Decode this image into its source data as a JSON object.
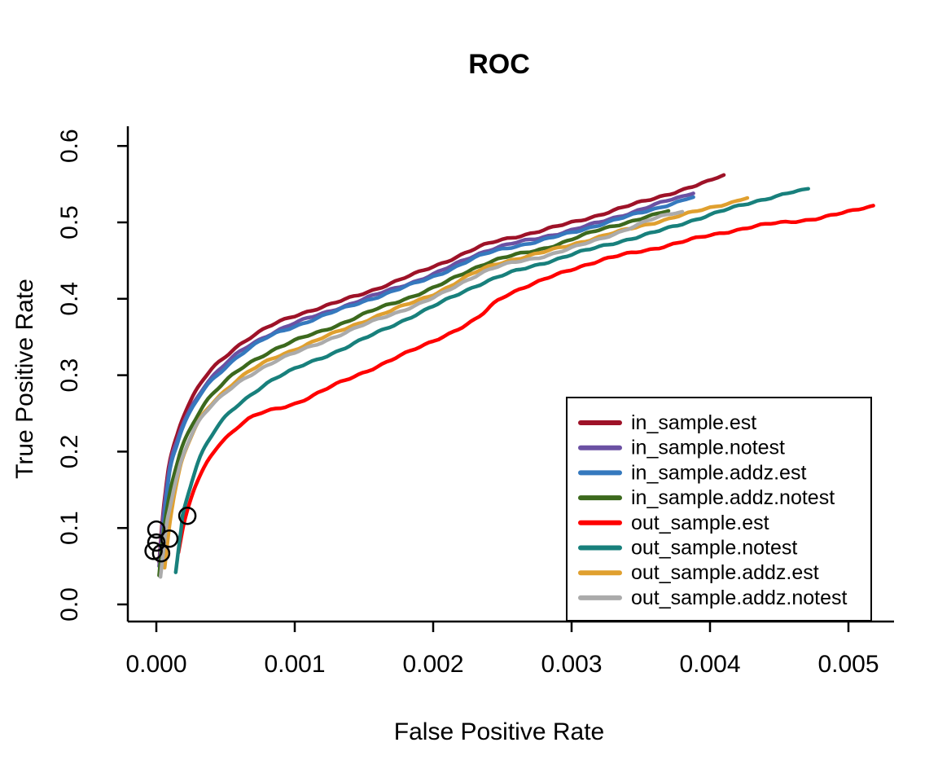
{
  "chart_data": {
    "type": "line",
    "title": "ROC",
    "xlabel": "False Positive Rate",
    "ylabel": "True Positive Rate",
    "xlim": [
      0,
      0.0052
    ],
    "ylim": [
      0,
      0.62
    ],
    "grid": false,
    "legend_position": "right-center",
    "x_ticks": {
      "values": [
        0.0,
        0.001,
        0.002,
        0.003,
        0.004,
        0.005
      ],
      "labels": [
        "0.000",
        "0.001",
        "0.002",
        "0.003",
        "0.004",
        "0.005"
      ]
    },
    "y_ticks": {
      "values": [
        0.0,
        0.1,
        0.2,
        0.3,
        0.4,
        0.5,
        0.6
      ],
      "labels": [
        "0.0",
        "0.1",
        "0.2",
        "0.3",
        "0.4",
        "0.5",
        "0.6"
      ]
    },
    "series": [
      {
        "name": "in_sample.est",
        "color": "#9E1228",
        "points": [
          [
            2e-05,
            0.055
          ],
          [
            4e-05,
            0.105
          ],
          [
            7e-05,
            0.155
          ],
          [
            0.0001,
            0.19
          ],
          [
            0.00015,
            0.222
          ],
          [
            0.0002,
            0.248
          ],
          [
            0.0003,
            0.283
          ],
          [
            0.0004,
            0.308
          ],
          [
            0.0005,
            0.325
          ],
          [
            0.0006,
            0.34
          ],
          [
            0.0008,
            0.362
          ],
          [
            0.001,
            0.378
          ],
          [
            0.0013,
            0.395
          ],
          [
            0.0016,
            0.414
          ],
          [
            0.002,
            0.442
          ],
          [
            0.0024,
            0.472
          ],
          [
            0.0028,
            0.49
          ],
          [
            0.0032,
            0.51
          ],
          [
            0.0036,
            0.532
          ],
          [
            0.0039,
            0.548
          ],
          [
            0.0041,
            0.562
          ]
        ]
      },
      {
        "name": "in_sample.notest",
        "color": "#6B51A3",
        "points": [
          [
            2e-05,
            0.05
          ],
          [
            5e-05,
            0.115
          ],
          [
            0.0001,
            0.183
          ],
          [
            0.00015,
            0.215
          ],
          [
            0.0002,
            0.24
          ],
          [
            0.0003,
            0.273
          ],
          [
            0.0004,
            0.297
          ],
          [
            0.0006,
            0.33
          ],
          [
            0.0008,
            0.352
          ],
          [
            0.001,
            0.368
          ],
          [
            0.0013,
            0.387
          ],
          [
            0.0016,
            0.406
          ],
          [
            0.002,
            0.432
          ],
          [
            0.0024,
            0.464
          ],
          [
            0.0028,
            0.481
          ],
          [
            0.0032,
            0.5
          ],
          [
            0.0036,
            0.523
          ],
          [
            0.00388,
            0.538
          ]
        ]
      },
      {
        "name": "in_sample.addz.est",
        "color": "#3579BE",
        "points": [
          [
            3e-05,
            0.05
          ],
          [
            6e-05,
            0.115
          ],
          [
            0.0001,
            0.178
          ],
          [
            0.00015,
            0.21
          ],
          [
            0.0002,
            0.235
          ],
          [
            0.0003,
            0.269
          ],
          [
            0.0004,
            0.293
          ],
          [
            0.0006,
            0.326
          ],
          [
            0.0008,
            0.349
          ],
          [
            0.001,
            0.364
          ],
          [
            0.0013,
            0.384
          ],
          [
            0.0016,
            0.403
          ],
          [
            0.002,
            0.429
          ],
          [
            0.0024,
            0.46
          ],
          [
            0.0028,
            0.477
          ],
          [
            0.0032,
            0.497
          ],
          [
            0.0036,
            0.518
          ],
          [
            0.00388,
            0.533
          ]
        ]
      },
      {
        "name": "in_sample.addz.notest",
        "color": "#3C691D",
        "points": [
          [
            2e-05,
            0.038
          ],
          [
            5e-05,
            0.09
          ],
          [
            0.0001,
            0.148
          ],
          [
            0.00015,
            0.185
          ],
          [
            0.0002,
            0.213
          ],
          [
            0.0003,
            0.249
          ],
          [
            0.0004,
            0.274
          ],
          [
            0.0006,
            0.307
          ],
          [
            0.0008,
            0.329
          ],
          [
            0.001,
            0.345
          ],
          [
            0.0013,
            0.365
          ],
          [
            0.0016,
            0.387
          ],
          [
            0.002,
            0.414
          ],
          [
            0.0024,
            0.448
          ],
          [
            0.0028,
            0.466
          ],
          [
            0.0032,
            0.49
          ],
          [
            0.0035,
            0.505
          ],
          [
            0.0037,
            0.515
          ]
        ]
      },
      {
        "name": "out_sample.est",
        "color": "#FF0000",
        "points": [
          [
            0.00016,
            0.068
          ],
          [
            0.0002,
            0.105
          ],
          [
            0.00025,
            0.138
          ],
          [
            0.0003,
            0.162
          ],
          [
            0.0004,
            0.196
          ],
          [
            0.0005,
            0.218
          ],
          [
            0.0007,
            0.246
          ],
          [
            0.001,
            0.263
          ],
          [
            0.0013,
            0.288
          ],
          [
            0.0016,
            0.312
          ],
          [
            0.002,
            0.345
          ],
          [
            0.0023,
            0.372
          ],
          [
            0.0025,
            0.402
          ],
          [
            0.0028,
            0.425
          ],
          [
            0.0032,
            0.45
          ],
          [
            0.0036,
            0.466
          ],
          [
            0.004,
            0.483
          ],
          [
            0.0044,
            0.497
          ],
          [
            0.0048,
            0.506
          ],
          [
            0.00518,
            0.522
          ]
        ]
      },
      {
        "name": "out_sample.notest",
        "color": "#18807C",
        "points": [
          [
            0.00014,
            0.042
          ],
          [
            0.00018,
            0.1
          ],
          [
            0.0002,
            0.125
          ],
          [
            0.0003,
            0.186
          ],
          [
            0.0004,
            0.221
          ],
          [
            0.0005,
            0.245
          ],
          [
            0.0006,
            0.262
          ],
          [
            0.0008,
            0.29
          ],
          [
            0.001,
            0.308
          ],
          [
            0.0013,
            0.331
          ],
          [
            0.0016,
            0.356
          ],
          [
            0.002,
            0.39
          ],
          [
            0.0024,
            0.424
          ],
          [
            0.0028,
            0.447
          ],
          [
            0.0032,
            0.468
          ],
          [
            0.0036,
            0.487
          ],
          [
            0.004,
            0.51
          ],
          [
            0.0044,
            0.531
          ],
          [
            0.00471,
            0.544
          ]
        ]
      },
      {
        "name": "out_sample.addz.est",
        "color": "#E0A02F",
        "points": [
          [
            6e-05,
            0.048
          ],
          [
            0.0001,
            0.11
          ],
          [
            0.00015,
            0.16
          ],
          [
            0.0002,
            0.196
          ],
          [
            0.0003,
            0.237
          ],
          [
            0.0004,
            0.263
          ],
          [
            0.0006,
            0.296
          ],
          [
            0.0008,
            0.318
          ],
          [
            0.001,
            0.334
          ],
          [
            0.0013,
            0.356
          ],
          [
            0.0016,
            0.378
          ],
          [
            0.002,
            0.406
          ],
          [
            0.0024,
            0.442
          ],
          [
            0.0028,
            0.461
          ],
          [
            0.0032,
            0.481
          ],
          [
            0.0036,
            0.5
          ],
          [
            0.004,
            0.519
          ],
          [
            0.00427,
            0.532
          ]
        ]
      },
      {
        "name": "out_sample.addz.notest",
        "color": "#ABABAB",
        "points": [
          [
            3e-05,
            0.036
          ],
          [
            7e-05,
            0.1
          ],
          [
            0.0001,
            0.128
          ],
          [
            0.00015,
            0.168
          ],
          [
            0.0002,
            0.2
          ],
          [
            0.0003,
            0.238
          ],
          [
            0.0004,
            0.26
          ],
          [
            0.0006,
            0.291
          ],
          [
            0.0008,
            0.313
          ],
          [
            0.001,
            0.329
          ],
          [
            0.0013,
            0.351
          ],
          [
            0.0016,
            0.373
          ],
          [
            0.002,
            0.401
          ],
          [
            0.0024,
            0.438
          ],
          [
            0.0028,
            0.456
          ],
          [
            0.0032,
            0.478
          ],
          [
            0.0036,
            0.505
          ],
          [
            0.0038,
            0.514
          ]
        ]
      }
    ],
    "markers": {
      "shape": "open-circle",
      "color": "#000000",
      "points": [
        [
          0.000224,
          0.116
        ],
        [
          0.0,
          0.098
        ],
        [
          9.4e-05,
          0.086
        ],
        [
          0.0,
          0.081
        ],
        [
          -2e-05,
          0.07
        ],
        [
          3.5e-05,
          0.067
        ]
      ]
    },
    "legend": {
      "items": [
        "in_sample.est",
        "in_sample.notest",
        "in_sample.addz.est",
        "in_sample.addz.notest",
        "out_sample.est",
        "out_sample.notest",
        "out_sample.addz.est",
        "out_sample.addz.notest"
      ]
    }
  }
}
